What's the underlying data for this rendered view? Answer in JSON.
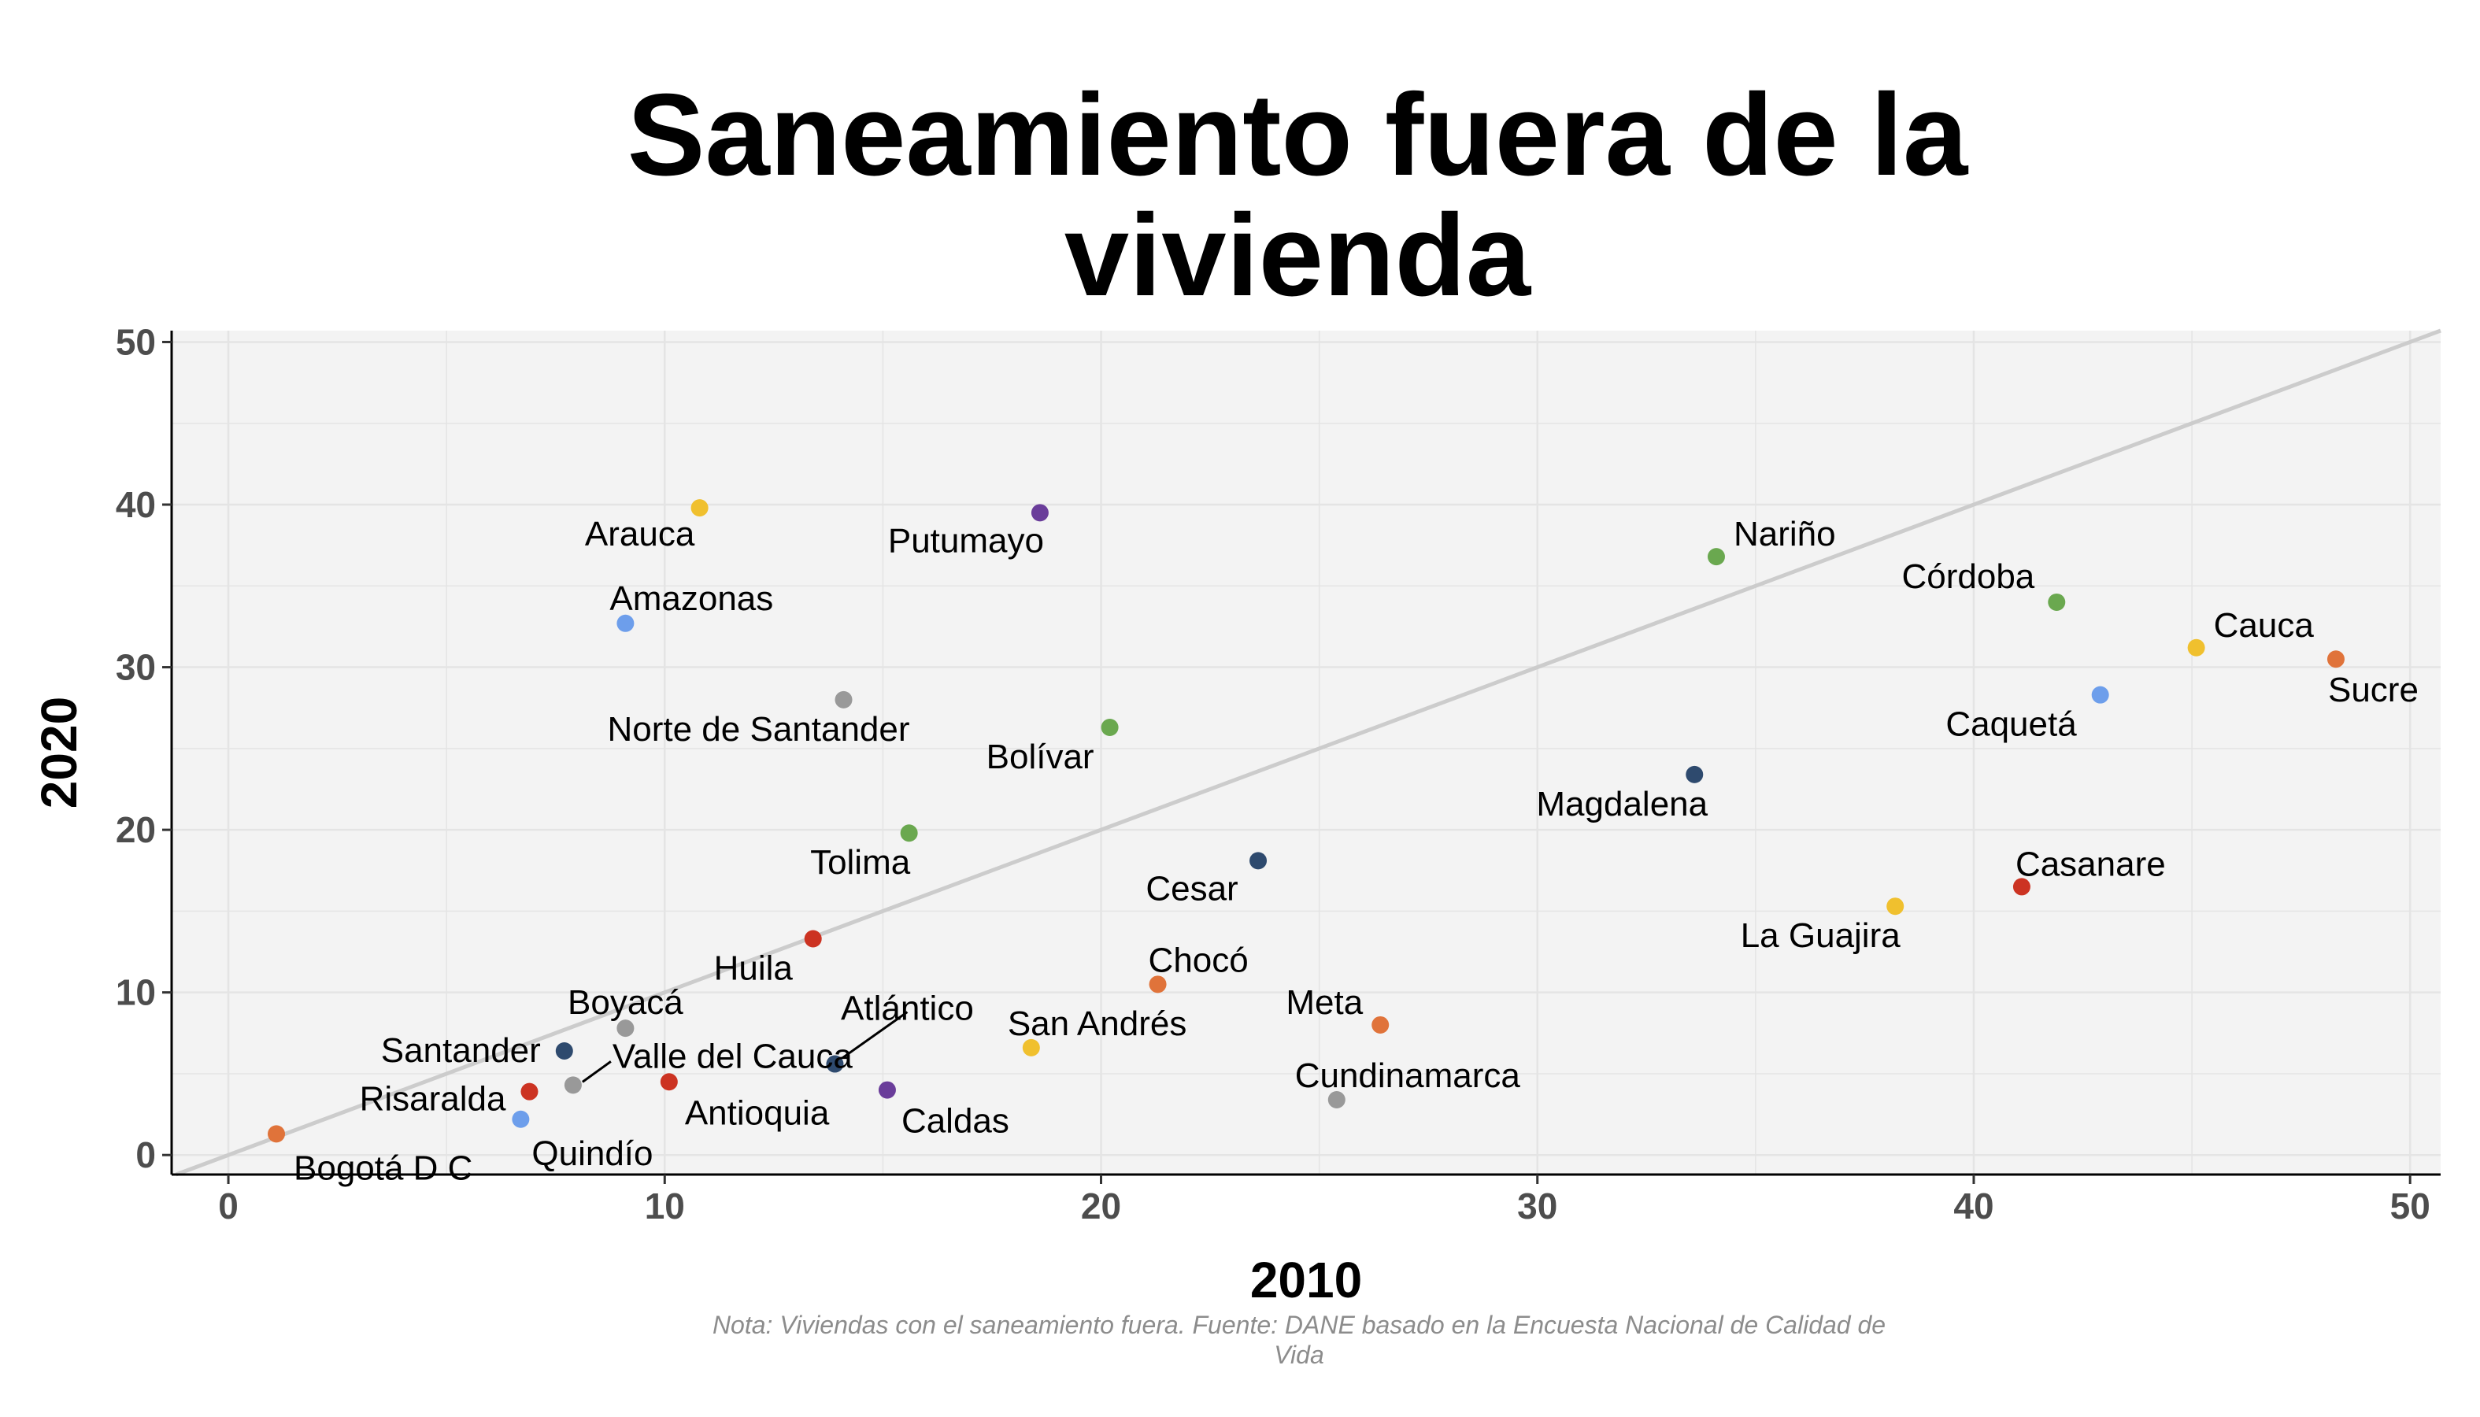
{
  "chart_data": {
    "type": "scatter",
    "title_lines": [
      "Saneamiento fuera de la",
      "vivienda"
    ],
    "xlabel": "2010",
    "ylabel": "2020",
    "xlim": [
      -1.3,
      50.7
    ],
    "ylim": [
      -1.2,
      50.7
    ],
    "x_ticks": [
      0,
      10,
      20,
      30,
      40,
      50
    ],
    "y_ticks": [
      0,
      10,
      20,
      30,
      40,
      50
    ],
    "grid": true,
    "reference_line": "y = x",
    "caption_lines": [
      "Nota: Viviendas con el saneamiento fuera. Fuente: DANE basado en la Encuesta Nacional de Calidad de",
      "Vida"
    ],
    "points": [
      {
        "name": "Arauca",
        "x": 10.8,
        "y": 39.8,
        "color": "#f0c02e"
      },
      {
        "name": "Putumayo",
        "x": 18.6,
        "y": 39.5,
        "color": "#6a3d9a"
      },
      {
        "name": "Nariño",
        "x": 34.1,
        "y": 36.8,
        "color": "#6aa84f"
      },
      {
        "name": "Córdoba",
        "x": 41.9,
        "y": 34.0,
        "color": "#6aa84f"
      },
      {
        "name": "Amazonas",
        "x": 9.1,
        "y": 32.7,
        "color": "#6d9eeb"
      },
      {
        "name": "Cauca",
        "x": 45.1,
        "y": 31.2,
        "color": "#f0c02e"
      },
      {
        "name": "Sucre",
        "x": 48.3,
        "y": 30.5,
        "color": "#e0733a"
      },
      {
        "name": "Caquetá",
        "x": 42.9,
        "y": 28.3,
        "color": "#6d9eeb"
      },
      {
        "name": "Norte de Santander",
        "x": 14.1,
        "y": 28.0,
        "color": "#999999"
      },
      {
        "name": "Bolívar",
        "x": 20.2,
        "y": 26.3,
        "color": "#6aa84f"
      },
      {
        "name": "Magdalena",
        "x": 33.6,
        "y": 23.4,
        "color": "#2e4a6e"
      },
      {
        "name": "Tolima",
        "x": 15.6,
        "y": 19.8,
        "color": "#6aa84f"
      },
      {
        "name": "Cesar",
        "x": 23.6,
        "y": 18.1,
        "color": "#2e4a6e"
      },
      {
        "name": "Casanare",
        "x": 41.1,
        "y": 16.5,
        "color": "#cc3322"
      },
      {
        "name": "La Guajira",
        "x": 38.2,
        "y": 15.3,
        "color": "#f0c02e"
      },
      {
        "name": "Huila",
        "x": 13.4,
        "y": 13.3,
        "color": "#cc3322"
      },
      {
        "name": "Chocó",
        "x": 21.3,
        "y": 10.5,
        "color": "#e0733a"
      },
      {
        "name": "Meta",
        "x": 26.4,
        "y": 8.0,
        "color": "#e0733a"
      },
      {
        "name": "Boyacá",
        "x": 9.1,
        "y": 7.8,
        "color": "#999999"
      },
      {
        "name": "San Andrés",
        "x": 18.4,
        "y": 6.6,
        "color": "#f0c02e"
      },
      {
        "name": "Santander",
        "x": 7.7,
        "y": 6.4,
        "color": "#2e4a6e"
      },
      {
        "name": "Atlántico",
        "x": 13.9,
        "y": 5.6,
        "color": "#2e4a6e"
      },
      {
        "name": "Antioquia",
        "x": 10.1,
        "y": 4.5,
        "color": "#cc3322"
      },
      {
        "name": "Valle del Cauca",
        "x": 7.9,
        "y": 4.3,
        "color": "#999999"
      },
      {
        "name": "Caldas",
        "x": 15.1,
        "y": 4.0,
        "color": "#6a3d9a"
      },
      {
        "name": "Risaralda",
        "x": 6.9,
        "y": 3.9,
        "color": "#cc3322"
      },
      {
        "name": "Cundinamarca",
        "x": 25.4,
        "y": 3.4,
        "color": "#999999"
      },
      {
        "name": "Quindío",
        "x": 6.7,
        "y": 2.2,
        "color": "#6d9eeb"
      },
      {
        "name": "Bogotá D C",
        "x": 1.1,
        "y": 1.3,
        "color": "#e0733a"
      }
    ]
  }
}
